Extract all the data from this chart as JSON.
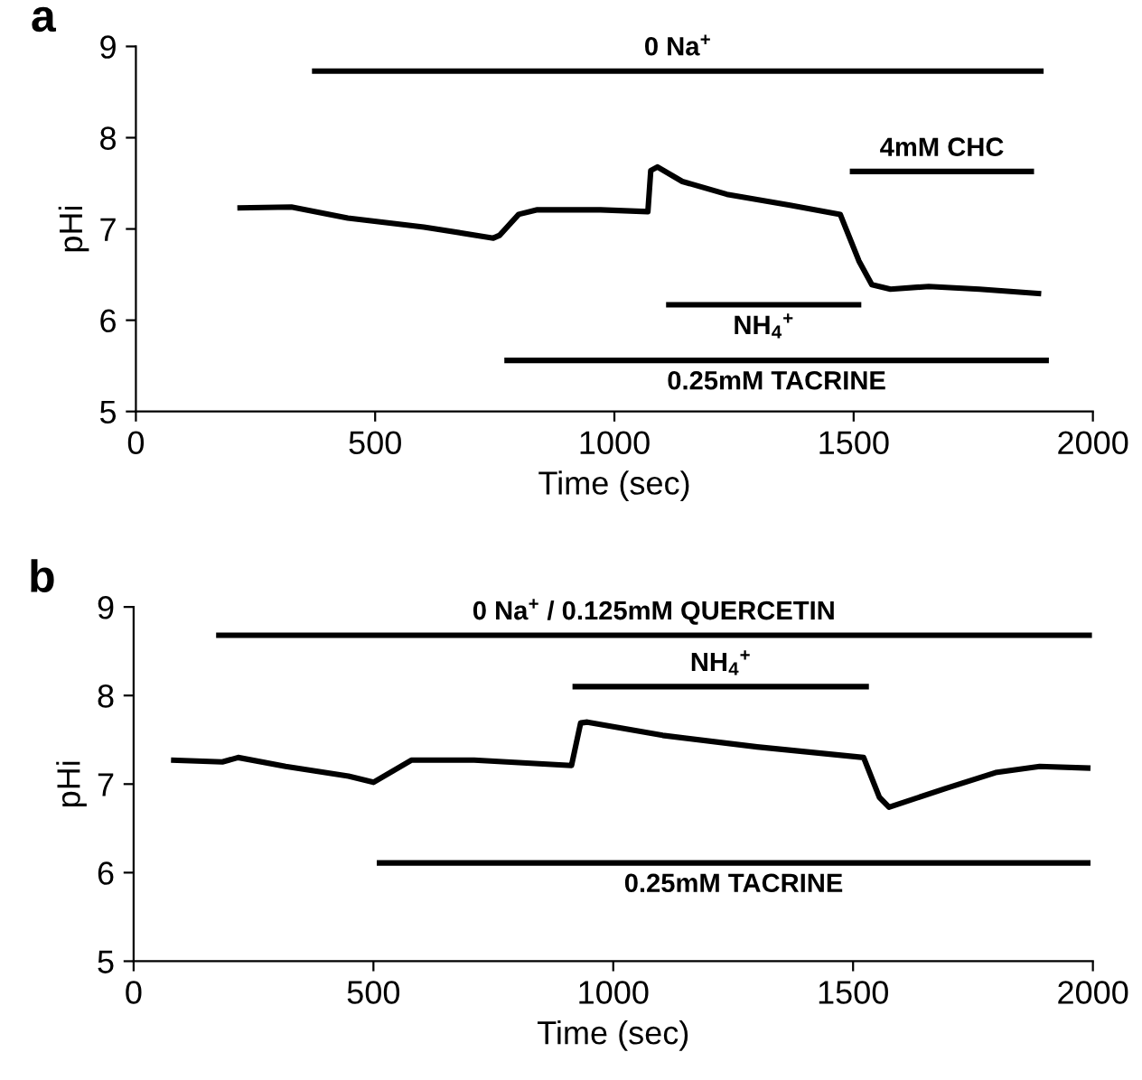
{
  "chart_data": [
    {
      "type": "line",
      "title": "a",
      "xlabel": "Time (sec)",
      "ylabel": "pHi",
      "xlim": [
        0,
        2000
      ],
      "ylim": [
        5,
        9
      ],
      "xticks": [
        0,
        500,
        1000,
        1500,
        2000
      ],
      "yticks": [
        5,
        6,
        7,
        8,
        9
      ],
      "grid": false,
      "series": [
        {
          "color": "#000000",
          "x": [
            212,
            325,
            443,
            602,
            747,
            760,
            800,
            839,
            971,
            1070,
            1076,
            1090,
            1142,
            1235,
            1367,
            1472,
            1485,
            1511,
            1538,
            1577,
            1657,
            1763,
            1892
          ],
          "values": [
            7.23,
            7.24,
            7.12,
            7.02,
            6.9,
            6.93,
            7.16,
            7.21,
            7.21,
            7.19,
            7.64,
            7.68,
            7.52,
            7.38,
            7.26,
            7.16,
            6.99,
            6.65,
            6.39,
            6.34,
            6.37,
            6.34,
            6.29
          ]
        },
        {
          "color": "#000000",
          "x": [
            368,
            1897
          ],
          "values": [
            8.73,
            8.73
          ]
        },
        {
          "color": "#000000",
          "x": [
            1492,
            1877
          ],
          "values": [
            7.63,
            7.63
          ]
        },
        {
          "color": "#000000",
          "x": [
            1108,
            1516
          ],
          "values": [
            6.17,
            6.17
          ]
        },
        {
          "color": "#000000",
          "x": [
            770,
            1908
          ],
          "values": [
            5.56,
            5.56
          ]
        }
      ],
      "annotations": [
        {
          "text": "0 Na$^{+}$",
          "x": 1132.5,
          "y": 8.73
        },
        {
          "text": "4mM CHC",
          "x": 1684.5,
          "y": 7.63
        },
        {
          "text": "NH$_{4}$$^{+}$",
          "x": 1312,
          "y": 6.17
        },
        {
          "text": "0.25mM TACRINE",
          "x": 1339,
          "y": 5.56
        }
      ]
    },
    {
      "type": "line",
      "title": "b",
      "xlabel": "Time (sec)",
      "ylabel": "pHi",
      "xlim": [
        0,
        2000
      ],
      "ylim": [
        5,
        9
      ],
      "xticks": [
        0,
        500,
        1000,
        1500,
        2000
      ],
      "yticks": [
        5,
        6,
        7,
        8,
        9
      ],
      "grid": false,
      "series": [
        {
          "color": "#000000",
          "x": [
            78,
            185,
            218,
            317,
            448,
            500,
            579,
            710,
            913,
            932,
            946,
            1103,
            1300,
            1522,
            1555,
            1575,
            1693,
            1797,
            1889,
            1995
          ],
          "values": [
            7.27,
            7.25,
            7.3,
            7.2,
            7.09,
            7.02,
            7.27,
            7.27,
            7.21,
            7.69,
            7.7,
            7.55,
            7.42,
            7.3,
            6.85,
            6.74,
            6.95,
            7.13,
            7.2,
            7.18
          ]
        },
        {
          "color": "#000000",
          "x": [
            172,
            1998
          ],
          "values": [
            8.68,
            8.68
          ]
        },
        {
          "color": "#000000",
          "x": [
            915,
            1533
          ],
          "values": [
            8.1,
            8.1
          ]
        },
        {
          "color": "#000000",
          "x": [
            507,
            1995
          ],
          "values": [
            6.11,
            6.11
          ]
        }
      ],
      "annotations": [
        {
          "text": "0 Na$^{+}$ / 0.125mM QUERCETIN",
          "x": 1085,
          "y": 8.68
        },
        {
          "text": "NH$_{4}$$^{+}$",
          "x": 1224,
          "y": 8.1
        },
        {
          "text": "0.25mM TACRINE",
          "x": 1251,
          "y": 6.11
        }
      ]
    }
  ]
}
